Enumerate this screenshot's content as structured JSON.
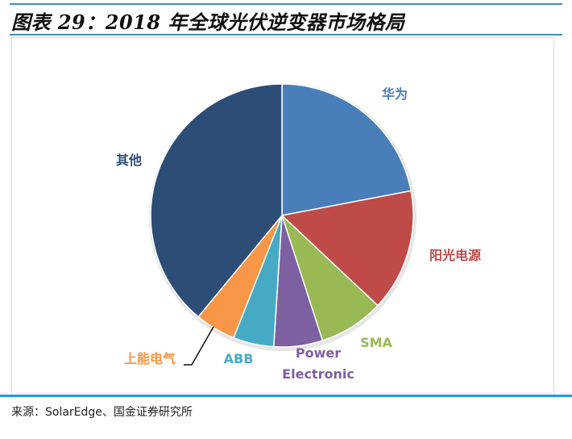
{
  "title": "图表 29：2018 年全球光伏逆变器市场格局",
  "source": "来源：SolarEdge、国金证券研究所",
  "chart_data": {
    "type": "pie",
    "start_angle": "12 o'clock",
    "direction": "clockwise",
    "slices": [
      {
        "label": "华为",
        "value": 22,
        "color": "#4a7ebb"
      },
      {
        "label": "阳光电源",
        "value": 15,
        "color": "#be4b48"
      },
      {
        "label": "SMA",
        "value": 8,
        "color": "#98b954"
      },
      {
        "label": "Power Electronic",
        "value": 6,
        "color": "#7d60a0"
      },
      {
        "label": "ABB",
        "value": 5,
        "color": "#46aac5"
      },
      {
        "label": "上能电气",
        "value": 5,
        "color": "#f79646"
      },
      {
        "label": "其他",
        "value": 39,
        "color": "#2c4d75"
      }
    ]
  }
}
